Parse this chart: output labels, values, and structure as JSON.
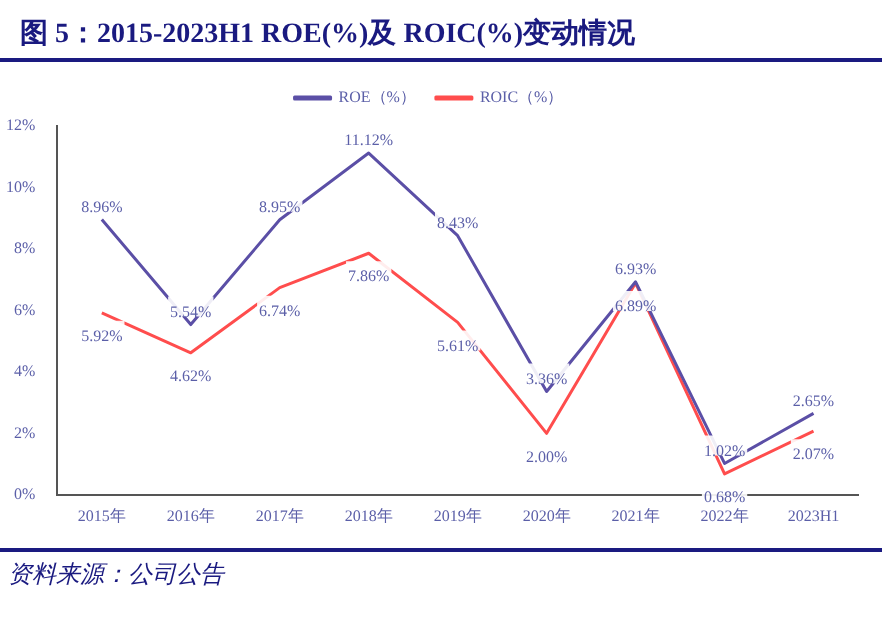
{
  "chart_data": {
    "type": "line",
    "title": "图 5：2015-2023H1 ROE(%)及 ROIC(%)变动情况",
    "categories": [
      "2015年",
      "2016年",
      "2017年",
      "2018年",
      "2019年",
      "2020年",
      "2021年",
      "2022年",
      "2023H1"
    ],
    "series": [
      {
        "name": "ROE（%）",
        "color": "#5b4fa6",
        "values": [
          8.96,
          5.54,
          8.95,
          11.12,
          8.43,
          3.36,
          6.93,
          1.02,
          2.65
        ],
        "value_labels": [
          "8.96%",
          "5.54%",
          "8.95%",
          "11.12%",
          "8.43%",
          "3.36%",
          "6.93%",
          "1.02%",
          "2.65%"
        ]
      },
      {
        "name": "ROIC（%）",
        "color": "#ff4d4d",
        "values": [
          5.92,
          4.62,
          6.74,
          7.86,
          5.61,
          2.0,
          6.89,
          0.68,
          2.07
        ],
        "value_labels": [
          "5.92%",
          "4.62%",
          "6.74%",
          "7.86%",
          "5.61%",
          "2.00%",
          "6.89%",
          "0.68%",
          "2.07%"
        ]
      }
    ],
    "ylim": [
      0,
      12
    ],
    "yticks": [
      {
        "value": 0,
        "label": "0%"
      },
      {
        "value": 2,
        "label": "2%"
      },
      {
        "value": 4,
        "label": "4%"
      },
      {
        "value": 6,
        "label": "6%"
      },
      {
        "value": 8,
        "label": "8%"
      },
      {
        "value": 10,
        "label": "10%"
      },
      {
        "value": 12,
        "label": "12%"
      }
    ],
    "grid": false,
    "legend": "top",
    "marker": "none",
    "line_style": "solid",
    "annotations": [
      "资料来源：公司公告"
    ]
  }
}
